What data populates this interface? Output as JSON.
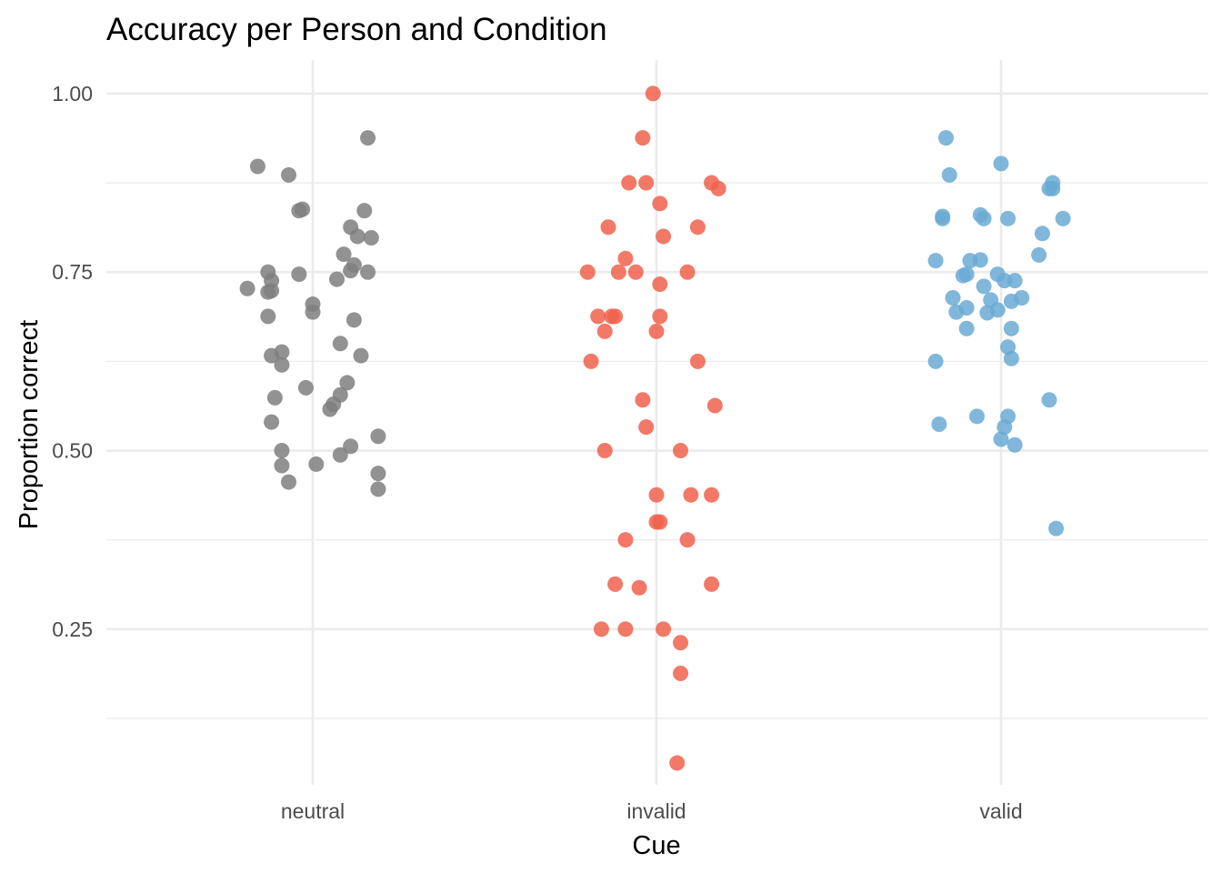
{
  "chart_data": {
    "type": "scatter",
    "title": "Accuracy per Person and Condition",
    "xlabel": "Cue",
    "ylabel": "Proportion correct",
    "categories": [
      "neutral",
      "invalid",
      "valid"
    ],
    "y_ticks": [
      {
        "value": 0.25,
        "label": "0.25"
      },
      {
        "value": 0.5,
        "label": "0.50"
      },
      {
        "value": 0.75,
        "label": "0.75"
      },
      {
        "value": 1.0,
        "label": "1.00"
      }
    ],
    "y_minor_ticks": [
      0.125,
      0.375,
      0.625,
      0.875
    ],
    "ylim": [
      0.032,
      1.047
    ],
    "grid": true,
    "legend": "none",
    "series": [
      {
        "category": "neutral",
        "color": "#7f7f7f",
        "points": [
          {
            "jitter": -0.16,
            "y": 0.898
          },
          {
            "jitter": 0.16,
            "y": 0.938
          },
          {
            "jitter": -0.07,
            "y": 0.886
          },
          {
            "jitter": -0.04,
            "y": 0.836
          },
          {
            "jitter": -0.03,
            "y": 0.838
          },
          {
            "jitter": 0.15,
            "y": 0.836
          },
          {
            "jitter": 0.11,
            "y": 0.813
          },
          {
            "jitter": 0.13,
            "y": 0.8
          },
          {
            "jitter": 0.17,
            "y": 0.798
          },
          {
            "jitter": 0.09,
            "y": 0.775
          },
          {
            "jitter": 0.12,
            "y": 0.76
          },
          {
            "jitter": 0.11,
            "y": 0.752
          },
          {
            "jitter": 0.16,
            "y": 0.75
          },
          {
            "jitter": -0.13,
            "y": 0.75
          },
          {
            "jitter": -0.04,
            "y": 0.747
          },
          {
            "jitter": 0.07,
            "y": 0.74
          },
          {
            "jitter": -0.12,
            "y": 0.738
          },
          {
            "jitter": -0.19,
            "y": 0.727
          },
          {
            "jitter": -0.13,
            "y": 0.722
          },
          {
            "jitter": -0.12,
            "y": 0.724
          },
          {
            "jitter": 0.0,
            "y": 0.705
          },
          {
            "jitter": 0.0,
            "y": 0.694
          },
          {
            "jitter": -0.13,
            "y": 0.688
          },
          {
            "jitter": 0.12,
            "y": 0.683
          },
          {
            "jitter": 0.08,
            "y": 0.65
          },
          {
            "jitter": -0.09,
            "y": 0.638
          },
          {
            "jitter": -0.12,
            "y": 0.633
          },
          {
            "jitter": 0.14,
            "y": 0.633
          },
          {
            "jitter": -0.09,
            "y": 0.62
          },
          {
            "jitter": 0.1,
            "y": 0.595
          },
          {
            "jitter": -0.02,
            "y": 0.588
          },
          {
            "jitter": 0.08,
            "y": 0.578
          },
          {
            "jitter": -0.11,
            "y": 0.574
          },
          {
            "jitter": 0.06,
            "y": 0.565
          },
          {
            "jitter": 0.05,
            "y": 0.558
          },
          {
            "jitter": -0.12,
            "y": 0.54
          },
          {
            "jitter": 0.19,
            "y": 0.52
          },
          {
            "jitter": 0.11,
            "y": 0.506
          },
          {
            "jitter": -0.09,
            "y": 0.5
          },
          {
            "jitter": 0.08,
            "y": 0.494
          },
          {
            "jitter": 0.01,
            "y": 0.481
          },
          {
            "jitter": -0.09,
            "y": 0.479
          },
          {
            "jitter": 0.19,
            "y": 0.468
          },
          {
            "jitter": -0.07,
            "y": 0.456
          },
          {
            "jitter": 0.19,
            "y": 0.446
          }
        ]
      },
      {
        "category": "invalid",
        "color": "#f0624c",
        "points": [
          {
            "jitter": -0.01,
            "y": 1.0
          },
          {
            "jitter": -0.04,
            "y": 0.938
          },
          {
            "jitter": -0.08,
            "y": 0.875
          },
          {
            "jitter": -0.03,
            "y": 0.875
          },
          {
            "jitter": 0.16,
            "y": 0.875
          },
          {
            "jitter": 0.18,
            "y": 0.867
          },
          {
            "jitter": 0.01,
            "y": 0.846
          },
          {
            "jitter": -0.14,
            "y": 0.813
          },
          {
            "jitter": 0.12,
            "y": 0.813
          },
          {
            "jitter": 0.02,
            "y": 0.8
          },
          {
            "jitter": -0.09,
            "y": 0.769
          },
          {
            "jitter": -0.2,
            "y": 0.75
          },
          {
            "jitter": -0.11,
            "y": 0.75
          },
          {
            "jitter": -0.06,
            "y": 0.75
          },
          {
            "jitter": 0.09,
            "y": 0.75
          },
          {
            "jitter": 0.01,
            "y": 0.733
          },
          {
            "jitter": -0.17,
            "y": 0.688
          },
          {
            "jitter": -0.13,
            "y": 0.688
          },
          {
            "jitter": -0.12,
            "y": 0.688
          },
          {
            "jitter": 0.01,
            "y": 0.688
          },
          {
            "jitter": -0.15,
            "y": 0.667
          },
          {
            "jitter": 0.0,
            "y": 0.667
          },
          {
            "jitter": -0.19,
            "y": 0.625
          },
          {
            "jitter": 0.12,
            "y": 0.625
          },
          {
            "jitter": -0.04,
            "y": 0.571
          },
          {
            "jitter": 0.17,
            "y": 0.563
          },
          {
            "jitter": -0.03,
            "y": 0.533
          },
          {
            "jitter": -0.15,
            "y": 0.5
          },
          {
            "jitter": 0.07,
            "y": 0.5
          },
          {
            "jitter": 0.0,
            "y": 0.438
          },
          {
            "jitter": 0.1,
            "y": 0.438
          },
          {
            "jitter": 0.16,
            "y": 0.438
          },
          {
            "jitter": 0.0,
            "y": 0.4
          },
          {
            "jitter": 0.01,
            "y": 0.4
          },
          {
            "jitter": -0.09,
            "y": 0.375
          },
          {
            "jitter": 0.09,
            "y": 0.375
          },
          {
            "jitter": -0.12,
            "y": 0.313
          },
          {
            "jitter": -0.05,
            "y": 0.308
          },
          {
            "jitter": 0.16,
            "y": 0.313
          },
          {
            "jitter": -0.16,
            "y": 0.25
          },
          {
            "jitter": -0.09,
            "y": 0.25
          },
          {
            "jitter": 0.02,
            "y": 0.25
          },
          {
            "jitter": 0.07,
            "y": 0.231
          },
          {
            "jitter": 0.07,
            "y": 0.188
          },
          {
            "jitter": 0.06,
            "y": 0.0625
          }
        ]
      },
      {
        "category": "valid",
        "color": "#6aaad3",
        "points": [
          {
            "jitter": -0.16,
            "y": 0.938
          },
          {
            "jitter": -0.15,
            "y": 0.886
          },
          {
            "jitter": 0.0,
            "y": 0.902
          },
          {
            "jitter": 0.15,
            "y": 0.875
          },
          {
            "jitter": 0.15,
            "y": 0.867
          },
          {
            "jitter": 0.14,
            "y": 0.867
          },
          {
            "jitter": -0.17,
            "y": 0.828
          },
          {
            "jitter": -0.17,
            "y": 0.825
          },
          {
            "jitter": -0.06,
            "y": 0.83
          },
          {
            "jitter": -0.05,
            "y": 0.825
          },
          {
            "jitter": 0.02,
            "y": 0.825
          },
          {
            "jitter": 0.18,
            "y": 0.825
          },
          {
            "jitter": 0.12,
            "y": 0.804
          },
          {
            "jitter": 0.11,
            "y": 0.774
          },
          {
            "jitter": -0.19,
            "y": 0.766
          },
          {
            "jitter": -0.09,
            "y": 0.766
          },
          {
            "jitter": -0.06,
            "y": 0.767
          },
          {
            "jitter": -0.11,
            "y": 0.745
          },
          {
            "jitter": -0.1,
            "y": 0.747
          },
          {
            "jitter": -0.01,
            "y": 0.747
          },
          {
            "jitter": 0.01,
            "y": 0.738
          },
          {
            "jitter": 0.04,
            "y": 0.738
          },
          {
            "jitter": -0.05,
            "y": 0.73
          },
          {
            "jitter": -0.14,
            "y": 0.714
          },
          {
            "jitter": -0.03,
            "y": 0.711
          },
          {
            "jitter": 0.03,
            "y": 0.709
          },
          {
            "jitter": 0.06,
            "y": 0.714
          },
          {
            "jitter": -0.1,
            "y": 0.7
          },
          {
            "jitter": -0.01,
            "y": 0.697
          },
          {
            "jitter": -0.13,
            "y": 0.694
          },
          {
            "jitter": -0.04,
            "y": 0.693
          },
          {
            "jitter": 0.03,
            "y": 0.671
          },
          {
            "jitter": -0.1,
            "y": 0.671
          },
          {
            "jitter": 0.02,
            "y": 0.645
          },
          {
            "jitter": 0.03,
            "y": 0.629
          },
          {
            "jitter": -0.19,
            "y": 0.625
          },
          {
            "jitter": 0.14,
            "y": 0.571
          },
          {
            "jitter": -0.07,
            "y": 0.548
          },
          {
            "jitter": 0.02,
            "y": 0.548
          },
          {
            "jitter": -0.18,
            "y": 0.537
          },
          {
            "jitter": 0.01,
            "y": 0.533
          },
          {
            "jitter": 0.0,
            "y": 0.516
          },
          {
            "jitter": 0.04,
            "y": 0.508
          },
          {
            "jitter": 0.16,
            "y": 0.391
          }
        ]
      }
    ]
  }
}
